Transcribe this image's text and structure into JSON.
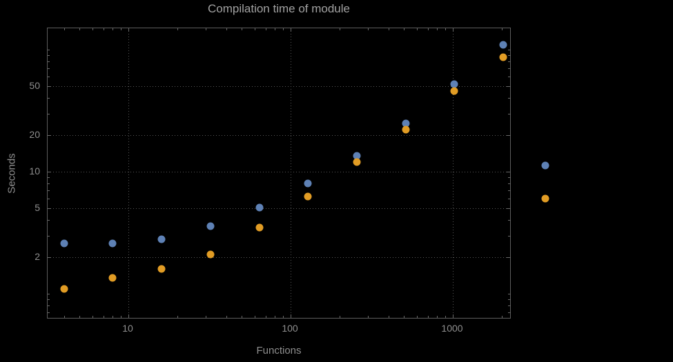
{
  "chart_data": {
    "type": "scatter",
    "title": "Compilation time of module",
    "xlabel": "Functions",
    "ylabel": "Seconds",
    "x_scale": "log",
    "y_scale": "log",
    "xlim": [
      3.2,
      2400
    ],
    "ylim": [
      0.62,
      150
    ],
    "x_ticks": [
      10,
      100,
      1000
    ],
    "y_ticks": [
      2,
      5,
      10,
      20,
      50
    ],
    "grid": "dotted at major ticks",
    "legend_position": "right of frame, markers only (no visible labels)",
    "x": [
      4,
      8,
      16,
      32,
      64,
      128,
      256,
      512,
      1024,
      2048
    ],
    "series": [
      {
        "name": "blue-series",
        "color": "#5e81b5",
        "values": [
          2.6,
          2.6,
          2.8,
          3.6,
          5.1,
          8,
          13.5,
          25,
          52,
          110
        ]
      },
      {
        "name": "orange-series",
        "color": "#e19c24",
        "values": [
          1.1,
          1.35,
          1.6,
          2.1,
          3.5,
          6.3,
          12,
          22,
          46,
          87
        ]
      }
    ],
    "legend_markers": [
      {
        "name": "blue-series",
        "color": "#5e81b5"
      },
      {
        "name": "orange-series",
        "color": "#e19c24"
      }
    ]
  },
  "colors": {
    "background": "#000000",
    "frame": "#5e5e5e",
    "grid": "#5a5a5a",
    "title_text": "#a2a2a2",
    "label_text": "#8f8f8f"
  }
}
